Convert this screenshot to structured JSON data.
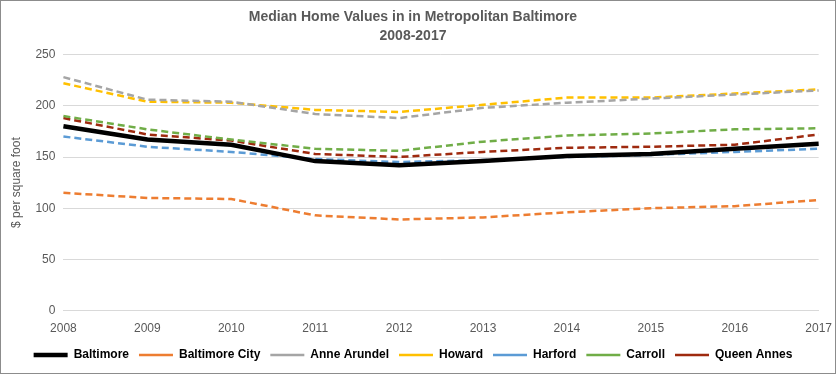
{
  "chart_data": {
    "type": "line",
    "title": "Median Home Values in in Metropolitan Baltimore",
    "subtitle": "2008-2017",
    "y_label": "$ per square foot",
    "categories": [
      "2008",
      "2009",
      "2010",
      "2011",
      "2012",
      "2013",
      "2014",
      "2015",
      "2016",
      "2017"
    ],
    "series": [
      {
        "name": "Baltimore",
        "color": "#000000",
        "line_style": "solid",
        "values": [
          180,
          167,
          162,
          146,
          142,
          146,
          151,
          153,
          158,
          163
        ]
      },
      {
        "name": "Baltimore City",
        "color": "#ED7D31",
        "line_style": "dashed",
        "values": [
          115,
          110,
          109,
          93,
          89,
          91,
          96,
          100,
          102,
          108
        ]
      },
      {
        "name": "Anne Arundel",
        "color": "#A5A5A5",
        "line_style": "dashed",
        "values": [
          228,
          206,
          204,
          192,
          188,
          198,
          203,
          207,
          211,
          215
        ]
      },
      {
        "name": "Howard",
        "color": "#FFC000",
        "line_style": "dashed",
        "values": [
          222,
          204,
          203,
          196,
          194,
          201,
          208,
          208,
          212,
          216
        ]
      },
      {
        "name": "Harford",
        "color": "#5B9BD5",
        "line_style": "dashed",
        "values": [
          170,
          160,
          155,
          148,
          145,
          147,
          150,
          152,
          155,
          158
        ]
      },
      {
        "name": "Carroll",
        "color": "#70AD47",
        "line_style": "dashed",
        "values": [
          190,
          177,
          167,
          158,
          156,
          165,
          171,
          173,
          177,
          178
        ]
      },
      {
        "name": "Queen Annes",
        "color": "#9E2A0F",
        "line_style": "dashed",
        "values": [
          188,
          172,
          166,
          153,
          150,
          155,
          159,
          160,
          162,
          172
        ]
      }
    ],
    "ylim": [
      0,
      250
    ],
    "yticks": [
      0,
      50,
      100,
      150,
      200,
      250
    ],
    "grid": true,
    "legend": "bottom"
  }
}
